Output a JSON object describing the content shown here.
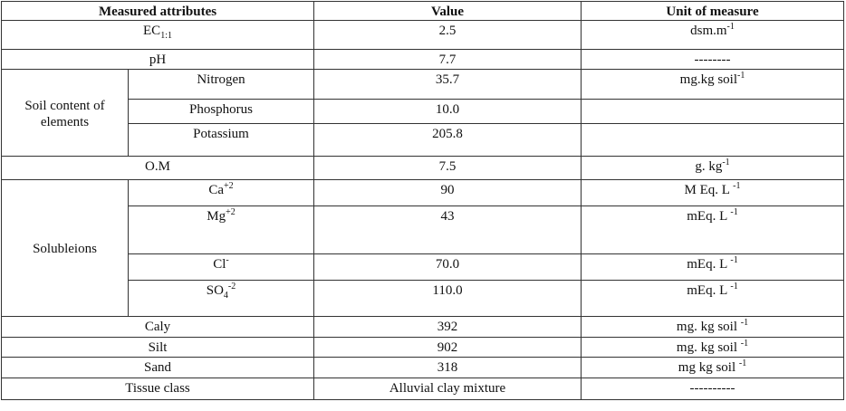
{
  "table": {
    "header": [
      "Measured attributes",
      "Value",
      "Unit of measure"
    ],
    "rows": [
      {
        "attribute": [
          {
            "text": "EC"
          },
          {
            "sub": "1:1"
          }
        ],
        "value": "2.5",
        "unit": [
          {
            "text": "dsm.m"
          },
          {
            "sup": "-1"
          }
        ]
      },
      {
        "attribute": "pH",
        "value": "7.7",
        "unit": "--------"
      },
      {
        "group": "Soil content of elements",
        "items": [
          {
            "attribute": "Nitrogen",
            "value": "35.7",
            "unit": [
              {
                "text": "mg.kg soil"
              },
              {
                "sup": "-1"
              }
            ]
          },
          {
            "attribute": "Phosphorus",
            "value": "10.0"
          },
          {
            "attribute": "Potassium",
            "value": "205.8"
          }
        ]
      },
      {
        "attribute": "O.M",
        "value": "7.5",
        "unit": [
          {
            "text": "g. kg"
          },
          {
            "sup": "-1"
          }
        ]
      },
      {
        "group": "Solubleions",
        "items": [
          {
            "attribute": [
              {
                "text": "Ca"
              },
              {
                "sup": "+2"
              }
            ],
            "value": "90",
            "unit": [
              {
                "text": "M Eq. L "
              },
              {
                "sup": "-1"
              }
            ]
          },
          {
            "attribute": [
              {
                "text": "Mg"
              },
              {
                "sup": "+2"
              }
            ],
            "value": "43",
            "unit": [
              {
                "text": "mEq. L "
              },
              {
                "sup": "-1"
              }
            ]
          },
          {
            "attribute": [
              {
                "text": "Cl"
              },
              {
                "sup": "-"
              }
            ],
            "value": "70.0",
            "unit": [
              {
                "text": "mEq. L "
              },
              {
                "sup": "-1"
              }
            ]
          },
          {
            "attribute": [
              {
                "text": "SO"
              },
              {
                "sub": "4"
              },
              {
                "sup": "-2"
              }
            ],
            "value": "110.0",
            "unit": [
              {
                "text": "mEq. L "
              },
              {
                "sup": "-1"
              }
            ]
          }
        ]
      },
      {
        "attribute": "Caly",
        "value": "392",
        "unit": [
          {
            "text": "mg. kg soil "
          },
          {
            "sup": "-1"
          }
        ]
      },
      {
        "attribute": "Silt",
        "value": "902",
        "unit": [
          {
            "text": "mg. kg soil "
          },
          {
            "sup": "-1"
          }
        ]
      },
      {
        "attribute": "Sand",
        "value": "318",
        "unit": [
          {
            "text": "mg kg soil "
          },
          {
            "sup": "-1"
          }
        ]
      },
      {
        "attribute": "Tissue class",
        "value": "Alluvial clay mixture",
        "unit": "----------"
      }
    ]
  }
}
